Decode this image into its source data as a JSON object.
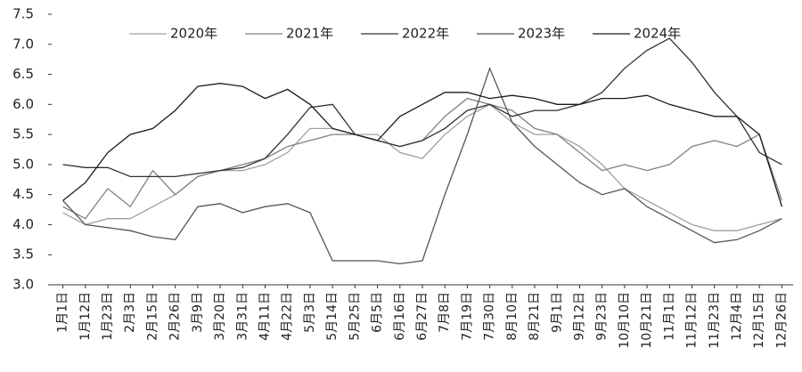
{
  "chart_data": {
    "type": "line",
    "categories": [
      "1月1日",
      "1月12日",
      "1月23日",
      "2月3日",
      "2月15日",
      "2月26日",
      "3月9日",
      "3月20日",
      "3月31日",
      "4月11日",
      "4月22日",
      "5月3日",
      "5月14日",
      "5月25日",
      "6月5日",
      "6月16日",
      "6月27日",
      "7月8日",
      "7月19日",
      "7月30日",
      "8月10日",
      "8月21日",
      "9月1日",
      "9月12日",
      "9月23日",
      "10月10日",
      "10月21日",
      "11月1日",
      "11月12日",
      "11月23日",
      "12月4日",
      "12月15日",
      "12月26日"
    ],
    "series": [
      {
        "name": "2020年",
        "color": "#a0a0a0",
        "values": [
          4.2,
          4.0,
          4.1,
          4.1,
          4.3,
          4.5,
          4.8,
          4.9,
          4.9,
          5.0,
          5.2,
          5.6,
          5.6,
          5.5,
          5.5,
          5.2,
          5.1,
          5.5,
          5.8,
          6.0,
          5.7,
          5.5,
          5.5,
          5.3,
          5.0,
          4.6,
          4.4,
          4.2,
          4.0,
          3.9,
          3.9,
          4.0,
          4.1
        ]
      },
      {
        "name": "2021年",
        "color": "#808080",
        "values": [
          4.3,
          4.1,
          4.6,
          4.3,
          4.9,
          4.5,
          4.8,
          4.9,
          5.0,
          5.1,
          5.3,
          5.4,
          5.5,
          5.5,
          5.4,
          5.3,
          5.4,
          5.8,
          6.1,
          6.0,
          5.9,
          5.6,
          5.5,
          5.2,
          4.9,
          5.0,
          4.9,
          5.0,
          5.3,
          5.4,
          5.3,
          5.5,
          4.4
        ]
      },
      {
        "name": "2022年",
        "color": "#303030",
        "values": [
          5.0,
          4.95,
          4.95,
          4.8,
          4.8,
          4.8,
          4.85,
          4.9,
          4.95,
          5.1,
          5.5,
          5.95,
          6.0,
          5.5,
          5.4,
          5.3,
          5.4,
          5.6,
          5.9,
          6.0,
          5.8,
          5.9,
          5.9,
          6.0,
          6.2,
          6.6,
          6.9,
          7.1,
          6.7,
          6.2,
          5.8,
          5.2,
          5.0
        ]
      },
      {
        "name": "2023年",
        "color": "#555555",
        "values": [
          4.4,
          4.0,
          3.95,
          3.9,
          3.8,
          3.75,
          4.3,
          4.35,
          4.2,
          4.3,
          4.35,
          4.2,
          3.4,
          3.4,
          3.4,
          3.35,
          3.4,
          4.5,
          5.5,
          6.6,
          5.7,
          5.3,
          5.0,
          4.7,
          4.5,
          4.6,
          4.3,
          4.1,
          3.9,
          3.7,
          3.75,
          3.9,
          4.1
        ]
      },
      {
        "name": "2024年",
        "color": "#1a1a1a",
        "values": [
          4.4,
          4.7,
          5.2,
          5.5,
          5.6,
          5.9,
          6.3,
          6.35,
          6.3,
          6.1,
          6.25,
          6.0,
          5.6,
          5.5,
          5.4,
          5.8,
          6.0,
          6.2,
          6.2,
          6.1,
          6.15,
          6.1,
          6.0,
          6.0,
          6.1,
          6.1,
          6.15,
          6.0,
          5.9,
          5.8,
          5.8,
          5.5,
          4.3
        ]
      }
    ],
    "ylim": [
      3,
      7.5
    ],
    "yticks": [
      {
        "value": 3,
        "label": "3.0"
      },
      3.5,
      {
        "value": 4,
        "label": "4.0"
      },
      4.5,
      {
        "value": 5,
        "label": "5.0"
      },
      5.5,
      {
        "value": 6,
        "label": "6.0"
      },
      6.5,
      {
        "value": 7,
        "label": "7.0"
      },
      7.5
    ]
  }
}
